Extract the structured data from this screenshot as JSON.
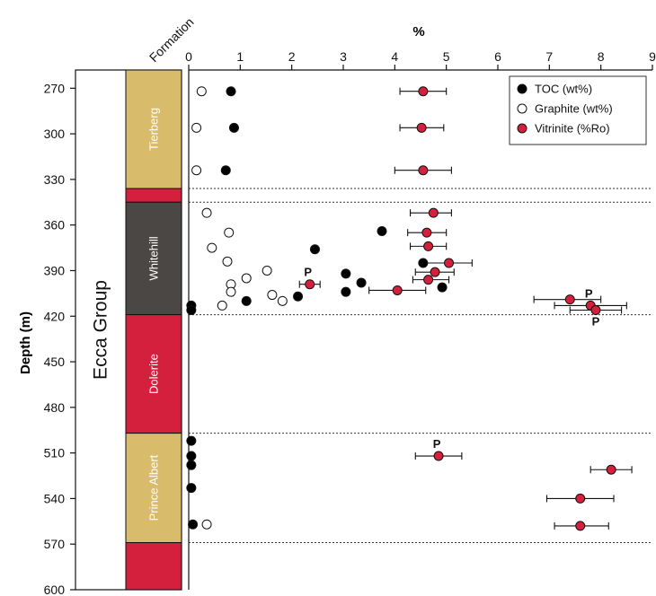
{
  "chart_data": {
    "type": "scatter",
    "title": "",
    "xlabel": "%",
    "ylabel": "Depth (m)",
    "xlim": [
      0,
      9
    ],
    "ylim": [
      600,
      258
    ],
    "xticks": [
      "0",
      "1",
      "2",
      "3",
      "4",
      "5",
      "6",
      "7",
      "8",
      "9"
    ],
    "yticks": [
      "270",
      "300",
      "330",
      "360",
      "390",
      "420",
      "450",
      "480",
      "510",
      "540",
      "570",
      "600"
    ],
    "group_label": "Ecca Group",
    "formation_header": "Formation",
    "formations": [
      {
        "name": "Tierberg",
        "top": 258,
        "bottom": 336,
        "color": "#d9bb6c",
        "label_color": "#ffffff"
      },
      {
        "name": "",
        "top": 336,
        "bottom": 345,
        "color": "#d4203c",
        "label_color": "#ffffff"
      },
      {
        "name": "Whitehill",
        "top": 345,
        "bottom": 419,
        "color": "#4b4745",
        "label_color": "#ffffff"
      },
      {
        "name": "Dolerite",
        "top": 419,
        "bottom": 497,
        "color": "#d4203c",
        "label_color": "#ffffff"
      },
      {
        "name": "Prince Albert",
        "top": 497,
        "bottom": 569,
        "color": "#d9bb6c",
        "label_color": "#ffffff"
      },
      {
        "name": "",
        "top": 569,
        "bottom": 600,
        "color": "#d4203c",
        "label_color": "#ffffff"
      }
    ],
    "boundaries": [
      336,
      345,
      419,
      497,
      569
    ],
    "legend_position": "top-right",
    "series": [
      {
        "name": "TOC (wt%)",
        "marker": "filled-black",
        "color": "#000000",
        "points": [
          {
            "x": 0.82,
            "y": 272
          },
          {
            "x": 0.88,
            "y": 296
          },
          {
            "x": 0.72,
            "y": 324
          },
          {
            "x": 3.75,
            "y": 364
          },
          {
            "x": 2.45,
            "y": 376
          },
          {
            "x": 4.55,
            "y": 385
          },
          {
            "x": 3.05,
            "y": 392
          },
          {
            "x": 3.35,
            "y": 398
          },
          {
            "x": 4.92,
            "y": 401
          },
          {
            "x": 3.05,
            "y": 404
          },
          {
            "x": 2.12,
            "y": 407
          },
          {
            "x": 1.12,
            "y": 410
          },
          {
            "x": 0.05,
            "y": 413
          },
          {
            "x": 0.05,
            "y": 416
          },
          {
            "x": 0.05,
            "y": 502
          },
          {
            "x": 0.05,
            "y": 512
          },
          {
            "x": 0.05,
            "y": 518
          },
          {
            "x": 0.05,
            "y": 533
          },
          {
            "x": 0.08,
            "y": 557
          }
        ]
      },
      {
        "name": "Graphite (wt%)",
        "marker": "open-circle",
        "color": "#000000",
        "points": [
          {
            "x": 0.25,
            "y": 272
          },
          {
            "x": 0.15,
            "y": 296
          },
          {
            "x": 0.15,
            "y": 324
          },
          {
            "x": 0.35,
            "y": 352
          },
          {
            "x": 0.78,
            "y": 365
          },
          {
            "x": 0.45,
            "y": 375
          },
          {
            "x": 0.75,
            "y": 384
          },
          {
            "x": 1.52,
            "y": 390
          },
          {
            "x": 1.12,
            "y": 395
          },
          {
            "x": 0.82,
            "y": 399
          },
          {
            "x": 0.82,
            "y": 404
          },
          {
            "x": 1.62,
            "y": 406
          },
          {
            "x": 1.82,
            "y": 410
          },
          {
            "x": 0.65,
            "y": 413
          },
          {
            "x": 0.35,
            "y": 557
          }
        ]
      },
      {
        "name": "Vitrinite (%Ro)",
        "marker": "red-circle",
        "color": "#d4203c",
        "points": [
          {
            "x": 4.55,
            "y": 272,
            "err": [
              4.1,
              5.0
            ]
          },
          {
            "x": 4.52,
            "y": 296,
            "err": [
              4.1,
              4.95
            ]
          },
          {
            "x": 4.55,
            "y": 324,
            "err": [
              4.0,
              5.1
            ]
          },
          {
            "x": 4.75,
            "y": 352,
            "err": [
              4.3,
              5.1
            ]
          },
          {
            "x": 4.62,
            "y": 365,
            "err": [
              4.25,
              5.0
            ]
          },
          {
            "x": 4.65,
            "y": 374,
            "err": [
              4.3,
              5.0
            ]
          },
          {
            "x": 5.05,
            "y": 385,
            "err": [
              4.6,
              5.5
            ]
          },
          {
            "x": 4.78,
            "y": 391,
            "err": [
              4.4,
              5.15
            ]
          },
          {
            "x": 4.65,
            "y": 396,
            "err": [
              4.35,
              5.05
            ]
          },
          {
            "x": 2.35,
            "y": 399,
            "err": [
              2.15,
              2.55
            ],
            "label": "P"
          },
          {
            "x": 4.05,
            "y": 403,
            "err": [
              3.5,
              4.6
            ]
          },
          {
            "x": 7.4,
            "y": 409,
            "err": [
              6.7,
              8.0
            ]
          },
          {
            "x": 7.8,
            "y": 413,
            "err": [
              7.1,
              8.5
            ],
            "label": "P"
          },
          {
            "x": 7.9,
            "y": 416,
            "err": [
              7.4,
              8.4
            ],
            "label": "P",
            "label_below": true
          },
          {
            "x": 4.85,
            "y": 512,
            "err": [
              4.4,
              5.3
            ],
            "label": "P"
          },
          {
            "x": 8.2,
            "y": 521,
            "err": [
              7.8,
              8.6
            ]
          },
          {
            "x": 7.6,
            "y": 540,
            "err": [
              6.95,
              8.25
            ]
          },
          {
            "x": 7.6,
            "y": 558,
            "err": [
              7.1,
              8.15
            ]
          }
        ]
      }
    ]
  }
}
